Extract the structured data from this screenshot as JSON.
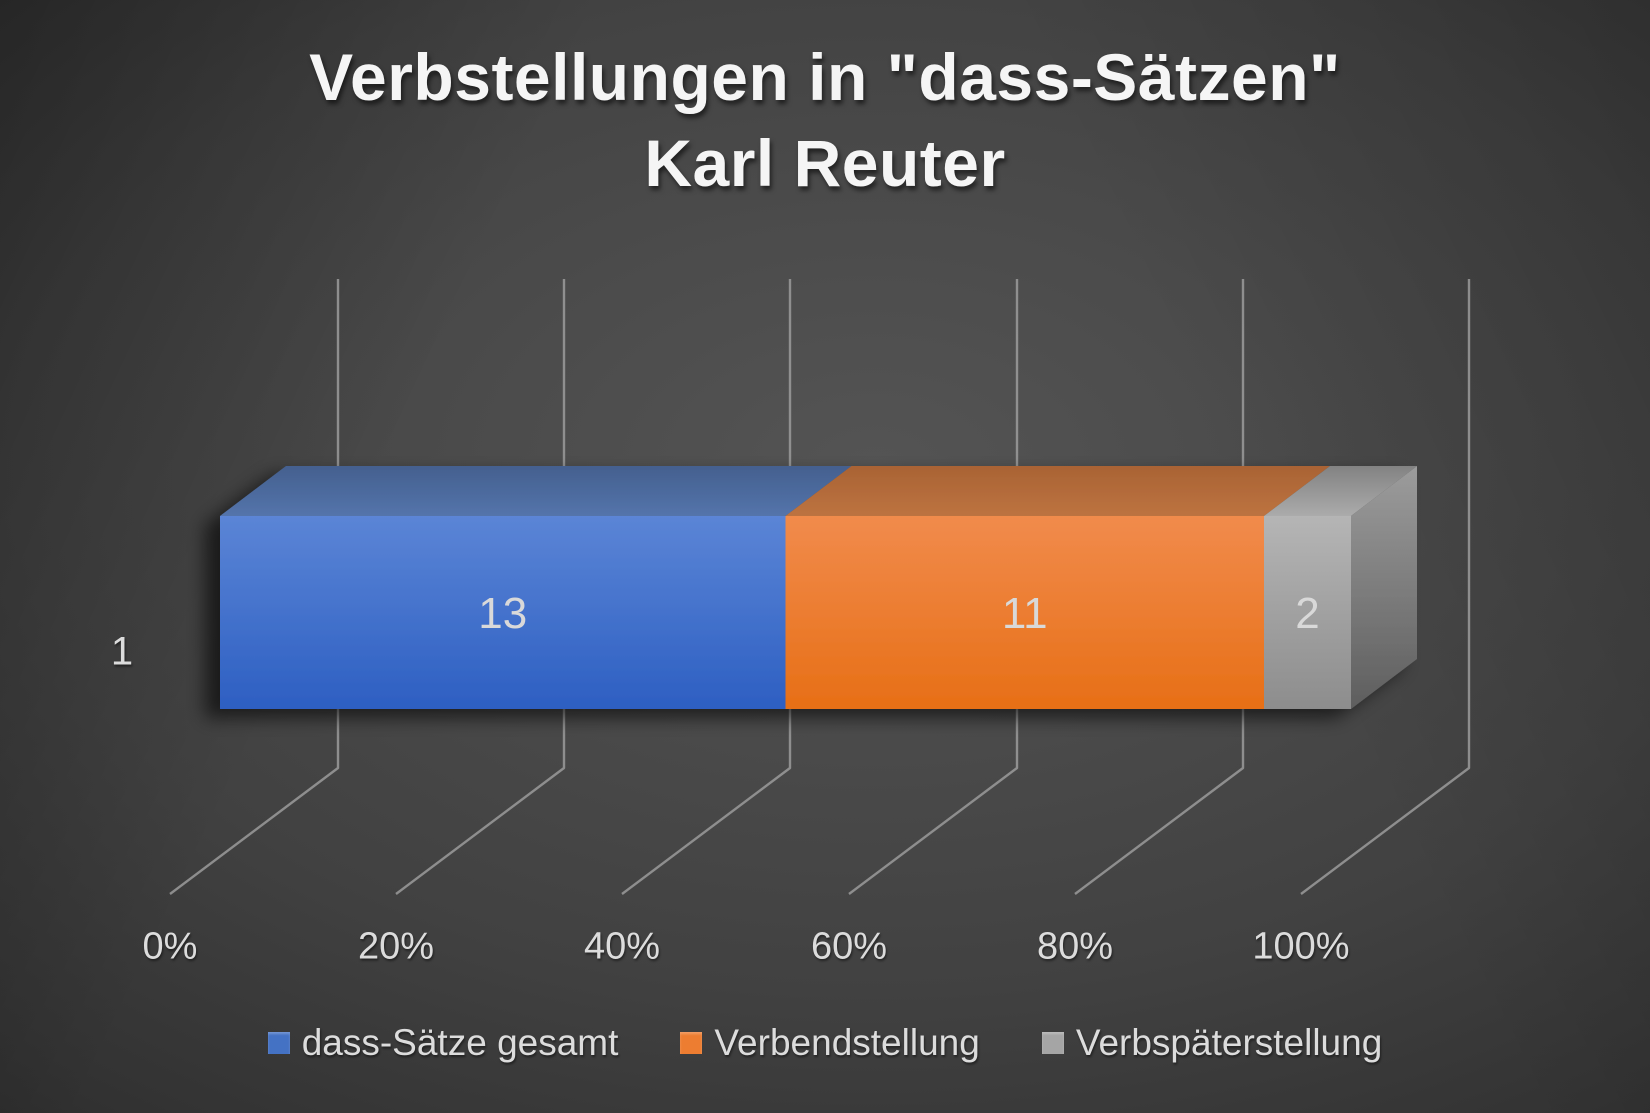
{
  "title": {
    "line1": "Verbstellungen in \"dass-Sätzen\"",
    "line2": "Karl Reuter"
  },
  "chart_data": {
    "type": "bar",
    "subtype": "3d-horizontal-100pct-stacked",
    "title": "Verbstellungen in \"dass-Sätzen\" Karl Reuter",
    "categories": [
      "1"
    ],
    "series": [
      {
        "name": "dass-Sätze gesamt",
        "values": [
          13
        ],
        "color": "#4472C4"
      },
      {
        "name": "Verbendstellung",
        "values": [
          11
        ],
        "color": "#ED7D31"
      },
      {
        "name": "Verbspäterstellung",
        "values": [
          2
        ],
        "color": "#A5A5A5"
      }
    ],
    "data_labels": [
      13,
      11,
      2
    ],
    "x_ticks": [
      "0%",
      "20%",
      "40%",
      "60%",
      "80%",
      "100%"
    ],
    "xlim": [
      "0%",
      "100%"
    ],
    "grid": true,
    "legend_position": "bottom",
    "background": "dark-gray-radial",
    "gridline_color": "#9b9b9b",
    "text_color": "#dcdcdc"
  }
}
